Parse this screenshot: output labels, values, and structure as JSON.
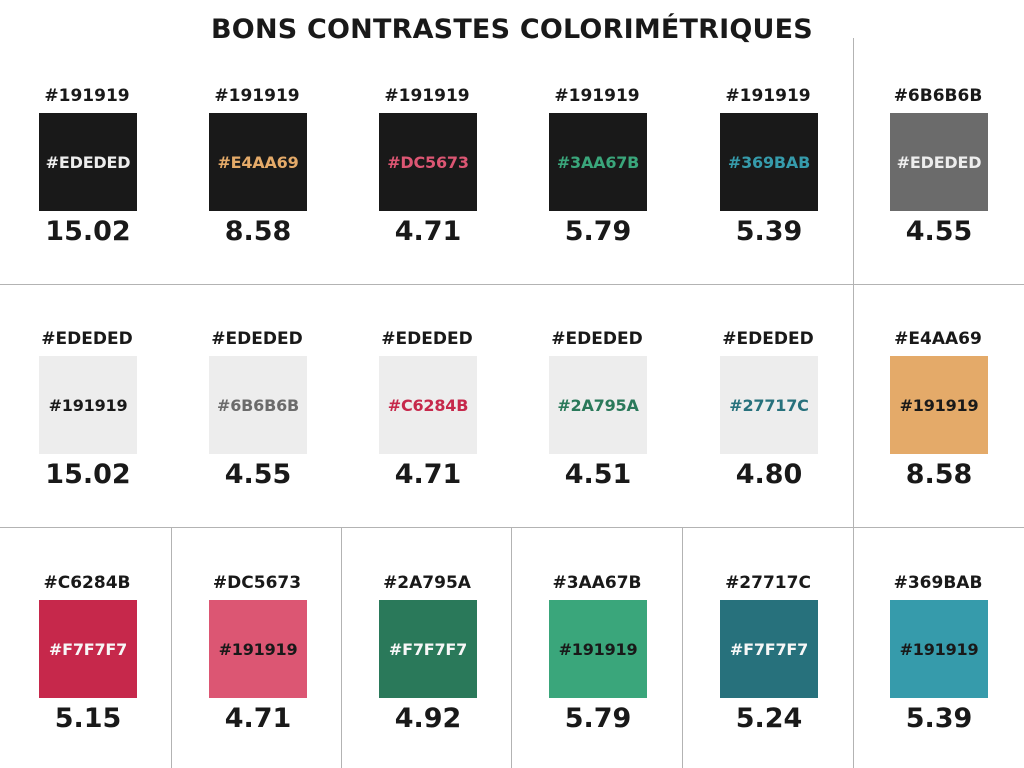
{
  "title": "BONS CONTRASTES COLORIMÉTRIQUES",
  "rows": [
    [
      {
        "bg": "#191919",
        "bg_label": "#191919",
        "fg": "#EDEDED",
        "fg_label": "#EDEDED",
        "ratio": "15.02"
      },
      {
        "bg": "#191919",
        "bg_label": "#191919",
        "fg": "#E4AA69",
        "fg_label": "#E4AA69",
        "ratio": "8.58"
      },
      {
        "bg": "#191919",
        "bg_label": "#191919",
        "fg": "#DC5673",
        "fg_label": "#DC5673",
        "ratio": "4.71"
      },
      {
        "bg": "#191919",
        "bg_label": "#191919",
        "fg": "#3AA67B",
        "fg_label": "#3AA67B",
        "ratio": "5.79"
      },
      {
        "bg": "#191919",
        "bg_label": "#191919",
        "fg": "#369BAB",
        "fg_label": "#369BAB",
        "ratio": "5.39"
      },
      {
        "bg": "#6B6B6B",
        "bg_label": "#6B6B6B",
        "fg": "#EDEDED",
        "fg_label": "#EDEDED",
        "ratio": "4.55"
      }
    ],
    [
      {
        "bg": "#EDEDED",
        "bg_label": "#EDEDED",
        "fg": "#191919",
        "fg_label": "#191919",
        "ratio": "15.02"
      },
      {
        "bg": "#EDEDED",
        "bg_label": "#EDEDED",
        "fg": "#6B6B6B",
        "fg_label": "#6B6B6B",
        "ratio": "4.55"
      },
      {
        "bg": "#EDEDED",
        "bg_label": "#EDEDED",
        "fg": "#C6284B",
        "fg_label": "#C6284B",
        "ratio": "4.71"
      },
      {
        "bg": "#EDEDED",
        "bg_label": "#EDEDED",
        "fg": "#2A795A",
        "fg_label": "#2A795A",
        "ratio": "4.51"
      },
      {
        "bg": "#EDEDED",
        "bg_label": "#EDEDED",
        "fg": "#27717C",
        "fg_label": "#27717C",
        "ratio": "4.80"
      },
      {
        "bg": "#E4AA69",
        "bg_label": "#E4AA69",
        "fg": "#191919",
        "fg_label": "#191919",
        "ratio": "8.58"
      }
    ],
    [
      {
        "bg": "#C6284B",
        "bg_label": "#C6284B",
        "fg": "#F7F7F7",
        "fg_label": "#F7F7F7",
        "ratio": "5.15"
      },
      {
        "bg": "#DC5673",
        "bg_label": "#DC5673",
        "fg": "#191919",
        "fg_label": "#191919",
        "ratio": "4.71"
      },
      {
        "bg": "#2A795A",
        "bg_label": "#2A795A",
        "fg": "#F7F7F7",
        "fg_label": "#F7F7F7",
        "ratio": "4.92"
      },
      {
        "bg": "#3AA67B",
        "bg_label": "#3AA67B",
        "fg": "#191919",
        "fg_label": "#191919",
        "ratio": "5.79"
      },
      {
        "bg": "#27717C",
        "bg_label": "#27717C",
        "fg": "#F7F7F7",
        "fg_label": "#F7F7F7",
        "ratio": "5.24"
      },
      {
        "bg": "#369BAB",
        "bg_label": "#369BAB",
        "fg": "#191919",
        "fg_label": "#191919",
        "ratio": "5.39"
      }
    ]
  ]
}
